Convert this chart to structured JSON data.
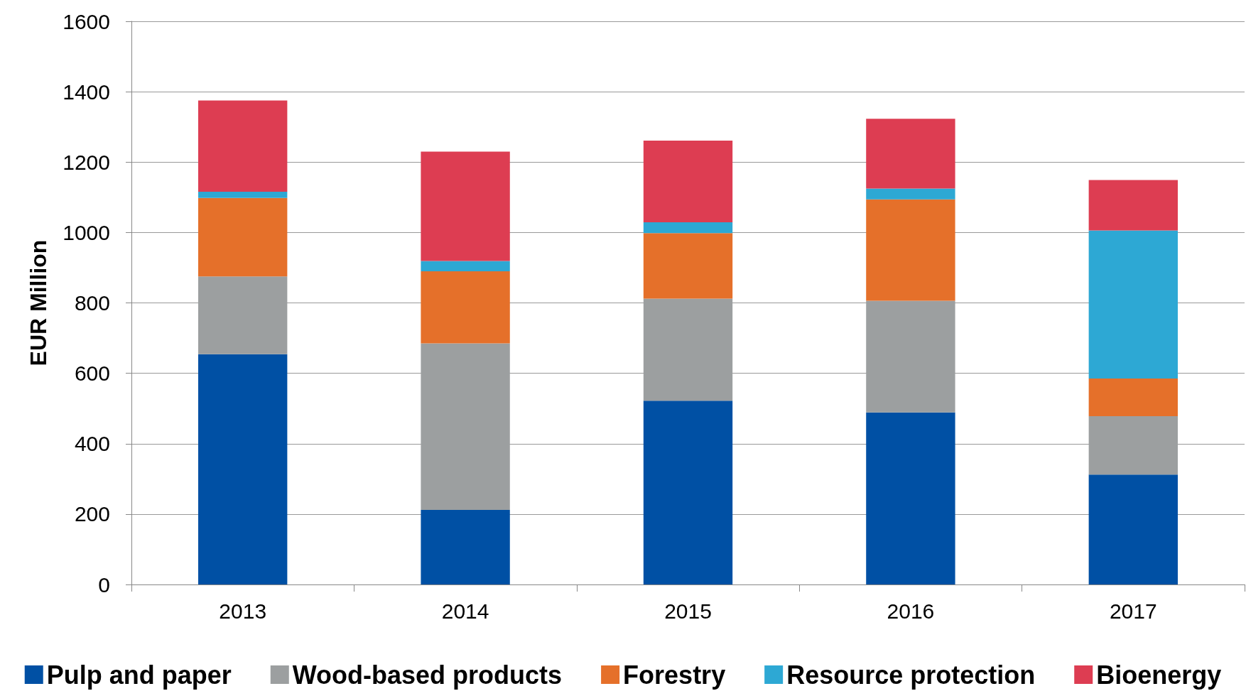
{
  "chart_data": {
    "type": "bar",
    "stacked": true,
    "ylabel": "EUR Million",
    "categories": [
      "2013",
      "2014",
      "2015",
      "2016",
      "2017"
    ],
    "series": [
      {
        "name": "Pulp and paper",
        "color": "#0050a4",
        "values": [
          654,
          212,
          522,
          489,
          312
        ]
      },
      {
        "name": "Wood-based products",
        "color": "#9c9fa0",
        "values": [
          221,
          473,
          290,
          317,
          166
        ]
      },
      {
        "name": "Forestry",
        "color": "#e5702a",
        "values": [
          223,
          205,
          186,
          288,
          107
        ]
      },
      {
        "name": "Resource protection",
        "color": "#2da8d4",
        "values": [
          18,
          29,
          31,
          31,
          421
        ]
      },
      {
        "name": "Bioenergy",
        "color": "#dd3d52",
        "values": [
          259,
          311,
          232,
          198,
          143
        ]
      }
    ],
    "ylim": [
      0,
      1600
    ],
    "yticks": [
      0,
      200,
      400,
      600,
      800,
      1000,
      1200,
      1400,
      1600
    ],
    "grid": "y",
    "legend": "bottom"
  }
}
